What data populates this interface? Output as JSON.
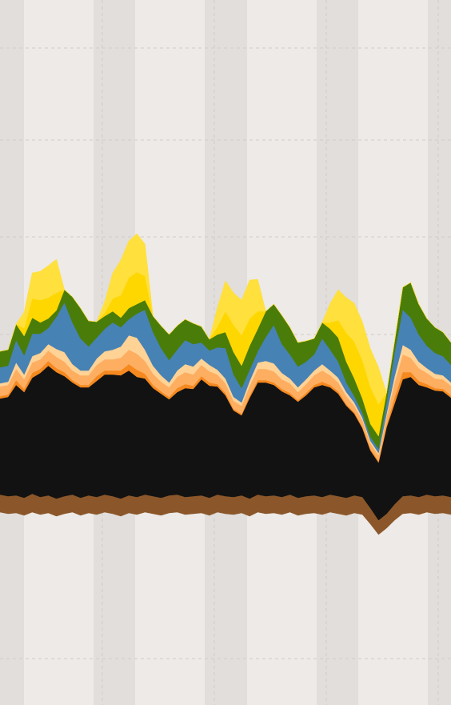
{
  "chart_data": {
    "type": "area",
    "stacked": true,
    "title": "",
    "xlabel": "",
    "ylabel": "",
    "grid": true,
    "legend": "none",
    "colors": {
      "background": "#edeae7",
      "night_band": "#e1dedb",
      "gridline": "#cfccc9"
    },
    "x": [
      0,
      1,
      2,
      3,
      4,
      5,
      6,
      7,
      8,
      9,
      10,
      11,
      12,
      13,
      14,
      15,
      16,
      17,
      18,
      19,
      20,
      21,
      22,
      23,
      24,
      25,
      26,
      27,
      28,
      29,
      30,
      31,
      32,
      33,
      34,
      35,
      36,
      37,
      38,
      39,
      40,
      41,
      42,
      43,
      44,
      45,
      46,
      47,
      48,
      49,
      50,
      51,
      52,
      53,
      54,
      55,
      56
    ],
    "baseline": [
      640,
      642,
      641,
      644,
      640,
      643,
      641,
      645,
      642,
      640,
      644,
      641,
      643,
      640,
      642,
      645,
      641,
      643,
      640,
      642,
      644,
      641,
      640,
      643,
      642,
      641,
      644,
      640,
      642,
      643,
      641,
      645,
      640,
      642,
      641,
      643,
      640,
      644,
      642,
      641,
      643,
      640,
      642,
      644,
      641,
      643,
      655,
      668,
      660,
      650,
      642,
      641,
      643,
      640,
      642,
      641,
      643
    ],
    "series": [
      {
        "color": "#8b572a",
        "values": [
          22,
          22,
          22,
          22,
          23,
          22,
          22,
          22,
          22,
          22,
          22,
          22,
          22,
          22,
          22,
          22,
          22,
          22,
          22,
          22,
          22,
          22,
          22,
          22,
          22,
          22,
          22,
          22,
          22,
          22,
          22,
          22,
          22,
          22,
          22,
          22,
          22,
          22,
          22,
          22,
          22,
          22,
          22,
          22,
          22,
          22,
          20,
          18,
          18,
          20,
          22,
          22,
          22,
          22,
          22,
          22,
          22
        ]
      },
      {
        "color": "#121212",
        "values": [
          120,
          124,
          138,
          132,
          145,
          155,
          162,
          158,
          150,
          140,
          138,
          135,
          145,
          150,
          152,
          154,
          156,
          150,
          145,
          135,
          130,
          120,
          128,
          136,
          134,
          145,
          140,
          135,
          126,
          108,
          100,
          126,
          140,
          142,
          138,
          132,
          124,
          120,
          126,
          135,
          140,
          134,
          128,
          115,
          102,
          86,
          72,
          72,
          108,
          126,
          146,
          148,
          140,
          134,
          132,
          130,
          124
        ]
      },
      {
        "color": "#f5891f",
        "values": [
          3,
          3,
          6,
          4,
          6,
          5,
          6,
          5,
          5,
          3,
          3,
          3,
          6,
          5,
          5,
          6,
          8,
          9,
          6,
          4,
          3,
          3,
          5,
          5,
          4,
          4,
          4,
          3,
          3,
          2,
          2,
          3,
          3,
          3,
          3,
          3,
          3,
          2,
          3,
          3,
          4,
          3,
          3,
          2,
          2,
          2,
          2,
          2,
          3,
          8,
          9,
          6,
          5,
          4,
          3,
          3,
          3
        ]
      },
      {
        "color": "#fdae61",
        "values": [
          12,
          12,
          14,
          12,
          13,
          12,
          13,
          14,
          13,
          12,
          12,
          12,
          14,
          14,
          14,
          16,
          18,
          20,
          16,
          14,
          12,
          12,
          14,
          15,
          14,
          14,
          14,
          12,
          12,
          10,
          10,
          12,
          14,
          14,
          14,
          12,
          12,
          10,
          11,
          12,
          14,
          12,
          11,
          10,
          8,
          8,
          7,
          7,
          10,
          18,
          22,
          18,
          16,
          14,
          12,
          12,
          12
        ]
      },
      {
        "color": "#ffd296",
        "values": [
          4,
          4,
          8,
          6,
          8,
          8,
          8,
          10,
          12,
          8,
          6,
          6,
          8,
          10,
          12,
          14,
          18,
          20,
          14,
          10,
          8,
          6,
          8,
          10,
          10,
          8,
          8,
          6,
          6,
          5,
          4,
          6,
          8,
          10,
          10,
          8,
          6,
          6,
          6,
          6,
          8,
          6,
          6,
          5,
          4,
          3,
          3,
          3,
          4,
          8,
          12,
          10,
          8,
          6,
          6,
          5,
          4
        ]
      },
      {
        "color": "#4682b4",
        "values": [
          20,
          20,
          28,
          24,
          28,
          24,
          20,
          40,
          62,
          52,
          40,
          30,
          26,
          28,
          34,
          24,
          20,
          30,
          50,
          42,
          34,
          28,
          26,
          30,
          28,
          20,
          18,
          28,
          38,
          28,
          18,
          14,
          14,
          30,
          48,
          36,
          30,
          26,
          22,
          20,
          32,
          26,
          20,
          12,
          8,
          6,
          5,
          5,
          14,
          30,
          44,
          40,
          34,
          28,
          26,
          24,
          22
        ]
      },
      {
        "color": "#4a7c0a",
        "values": [
          20,
          20,
          20,
          24,
          20,
          14,
          12,
          8,
          16,
          32,
          38,
          32,
          20,
          16,
          14,
          12,
          14,
          12,
          12,
          20,
          28,
          32,
          30,
          26,
          26,
          20,
          14,
          16,
          20,
          28,
          28,
          30,
          28,
          32,
          26,
          36,
          34,
          30,
          26,
          20,
          20,
          26,
          30,
          26,
          22,
          18,
          16,
          16,
          12,
          14,
          28,
          44,
          38,
          34,
          32,
          30,
          28
        ]
      },
      {
        "color": "#ffd700",
        "values": [
          0,
          0,
          0,
          10,
          24,
          28,
          26,
          22,
          0,
          0,
          0,
          0,
          0,
          4,
          16,
          28,
          38,
          40,
          30,
          0,
          0,
          0,
          0,
          0,
          0,
          0,
          0,
          10,
          26,
          34,
          38,
          34,
          22,
          0,
          0,
          0,
          0,
          0,
          0,
          0,
          0,
          8,
          22,
          36,
          46,
          48,
          46,
          40,
          0,
          0,
          0,
          0,
          0,
          0,
          0,
          0,
          0
        ]
      },
      {
        "color": "#ffe03c",
        "values": [
          0,
          0,
          0,
          20,
          32,
          36,
          40,
          42,
          0,
          0,
          0,
          0,
          0,
          14,
          32,
          44,
          46,
          48,
          40,
          0,
          0,
          0,
          0,
          0,
          0,
          0,
          0,
          24,
          38,
          40,
          44,
          48,
          40,
          0,
          0,
          0,
          0,
          0,
          0,
          0,
          0,
          24,
          38,
          44,
          48,
          48,
          48,
          46,
          0,
          0,
          0,
          0,
          0,
          0,
          0,
          0,
          0
        ]
      }
    ]
  }
}
